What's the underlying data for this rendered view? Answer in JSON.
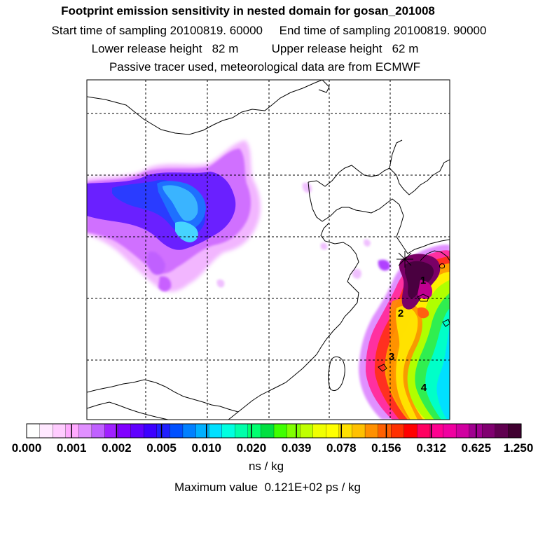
{
  "header": {
    "title": "Footprint emission sensitivity in nested domain for gosan_201008",
    "sampling_line": "Start time of sampling 20100819. 60000     End time of sampling 20100819. 90000",
    "release_line": "Lower release height   82 m          Upper release height   62 m",
    "tracer_line": "Passive tracer used, meteorological data are from ECMWF"
  },
  "map": {
    "receptor_marker": "star-marker",
    "trajectory_labels": [
      "1",
      "2",
      "3",
      "4"
    ],
    "plume_colors": [
      "#c800ff",
      "#4a00ff",
      "#0040ff",
      "#00e0ff",
      "#00ff40",
      "#ffff00",
      "#ffa000",
      "#ff2000",
      "#ff0080",
      "#a0006e",
      "#50003c"
    ]
  },
  "colorbar": {
    "colors": [
      "#ffffff",
      "#ffe8ff",
      "#ffccff",
      "#ffaaff",
      "#e090ff",
      "#c060ff",
      "#a020ff",
      "#8000ff",
      "#6000ff",
      "#3c00ff",
      "#2020ff",
      "#0050ff",
      "#0080ff",
      "#00b0ff",
      "#00e0ff",
      "#00ffe0",
      "#00ffaa",
      "#00ff70",
      "#00e040",
      "#40ff00",
      "#80ff00",
      "#c0ff00",
      "#f0ff00",
      "#ffff00",
      "#ffe000",
      "#ffc000",
      "#ff9000",
      "#ff6000",
      "#ff3000",
      "#ff0000",
      "#ff0060",
      "#ff0090",
      "#f000a0",
      "#d000a0",
      "#a00090",
      "#800070",
      "#600050",
      "#400030"
    ],
    "tick_labels": [
      "0.000",
      "0.001",
      "0.002",
      "0.005",
      "0.010",
      "0.020",
      "0.039",
      "0.078",
      "0.156",
      "0.312",
      "0.625",
      "1.250"
    ],
    "unit": "ns / kg"
  },
  "footer": {
    "max_value": "Maximum value  0.121E+02 ps / kg"
  }
}
